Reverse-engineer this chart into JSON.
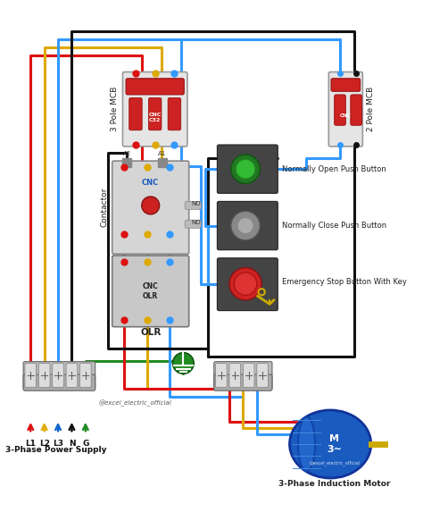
{
  "bg_color": "#ffffff",
  "wire_colors": {
    "red": "#dd1111",
    "yellow": "#ddaa00",
    "blue": "#1166cc",
    "black": "#111111",
    "green": "#228b22",
    "light_blue": "#3399ff"
  },
  "labels": {
    "3pole_mcb": "3 Pole MCB",
    "2pole_mcb": "2 Pole MCB",
    "contactor": "Contactor",
    "olr": "OLR",
    "no_button": "Normally Open Push Button",
    "nc_button": "Normally Close Push Button",
    "estop": "Emergency Stop Button With Key",
    "power_supply": "3-Phase Power Supply",
    "motor": "3-Phase Induction Motor",
    "l1": "L1",
    "l2": "L2",
    "l3": "L3",
    "n": "N",
    "g": "G",
    "instagram": "@excel_electric_official"
  },
  "font_size": 6.5,
  "line_width": 2.2
}
